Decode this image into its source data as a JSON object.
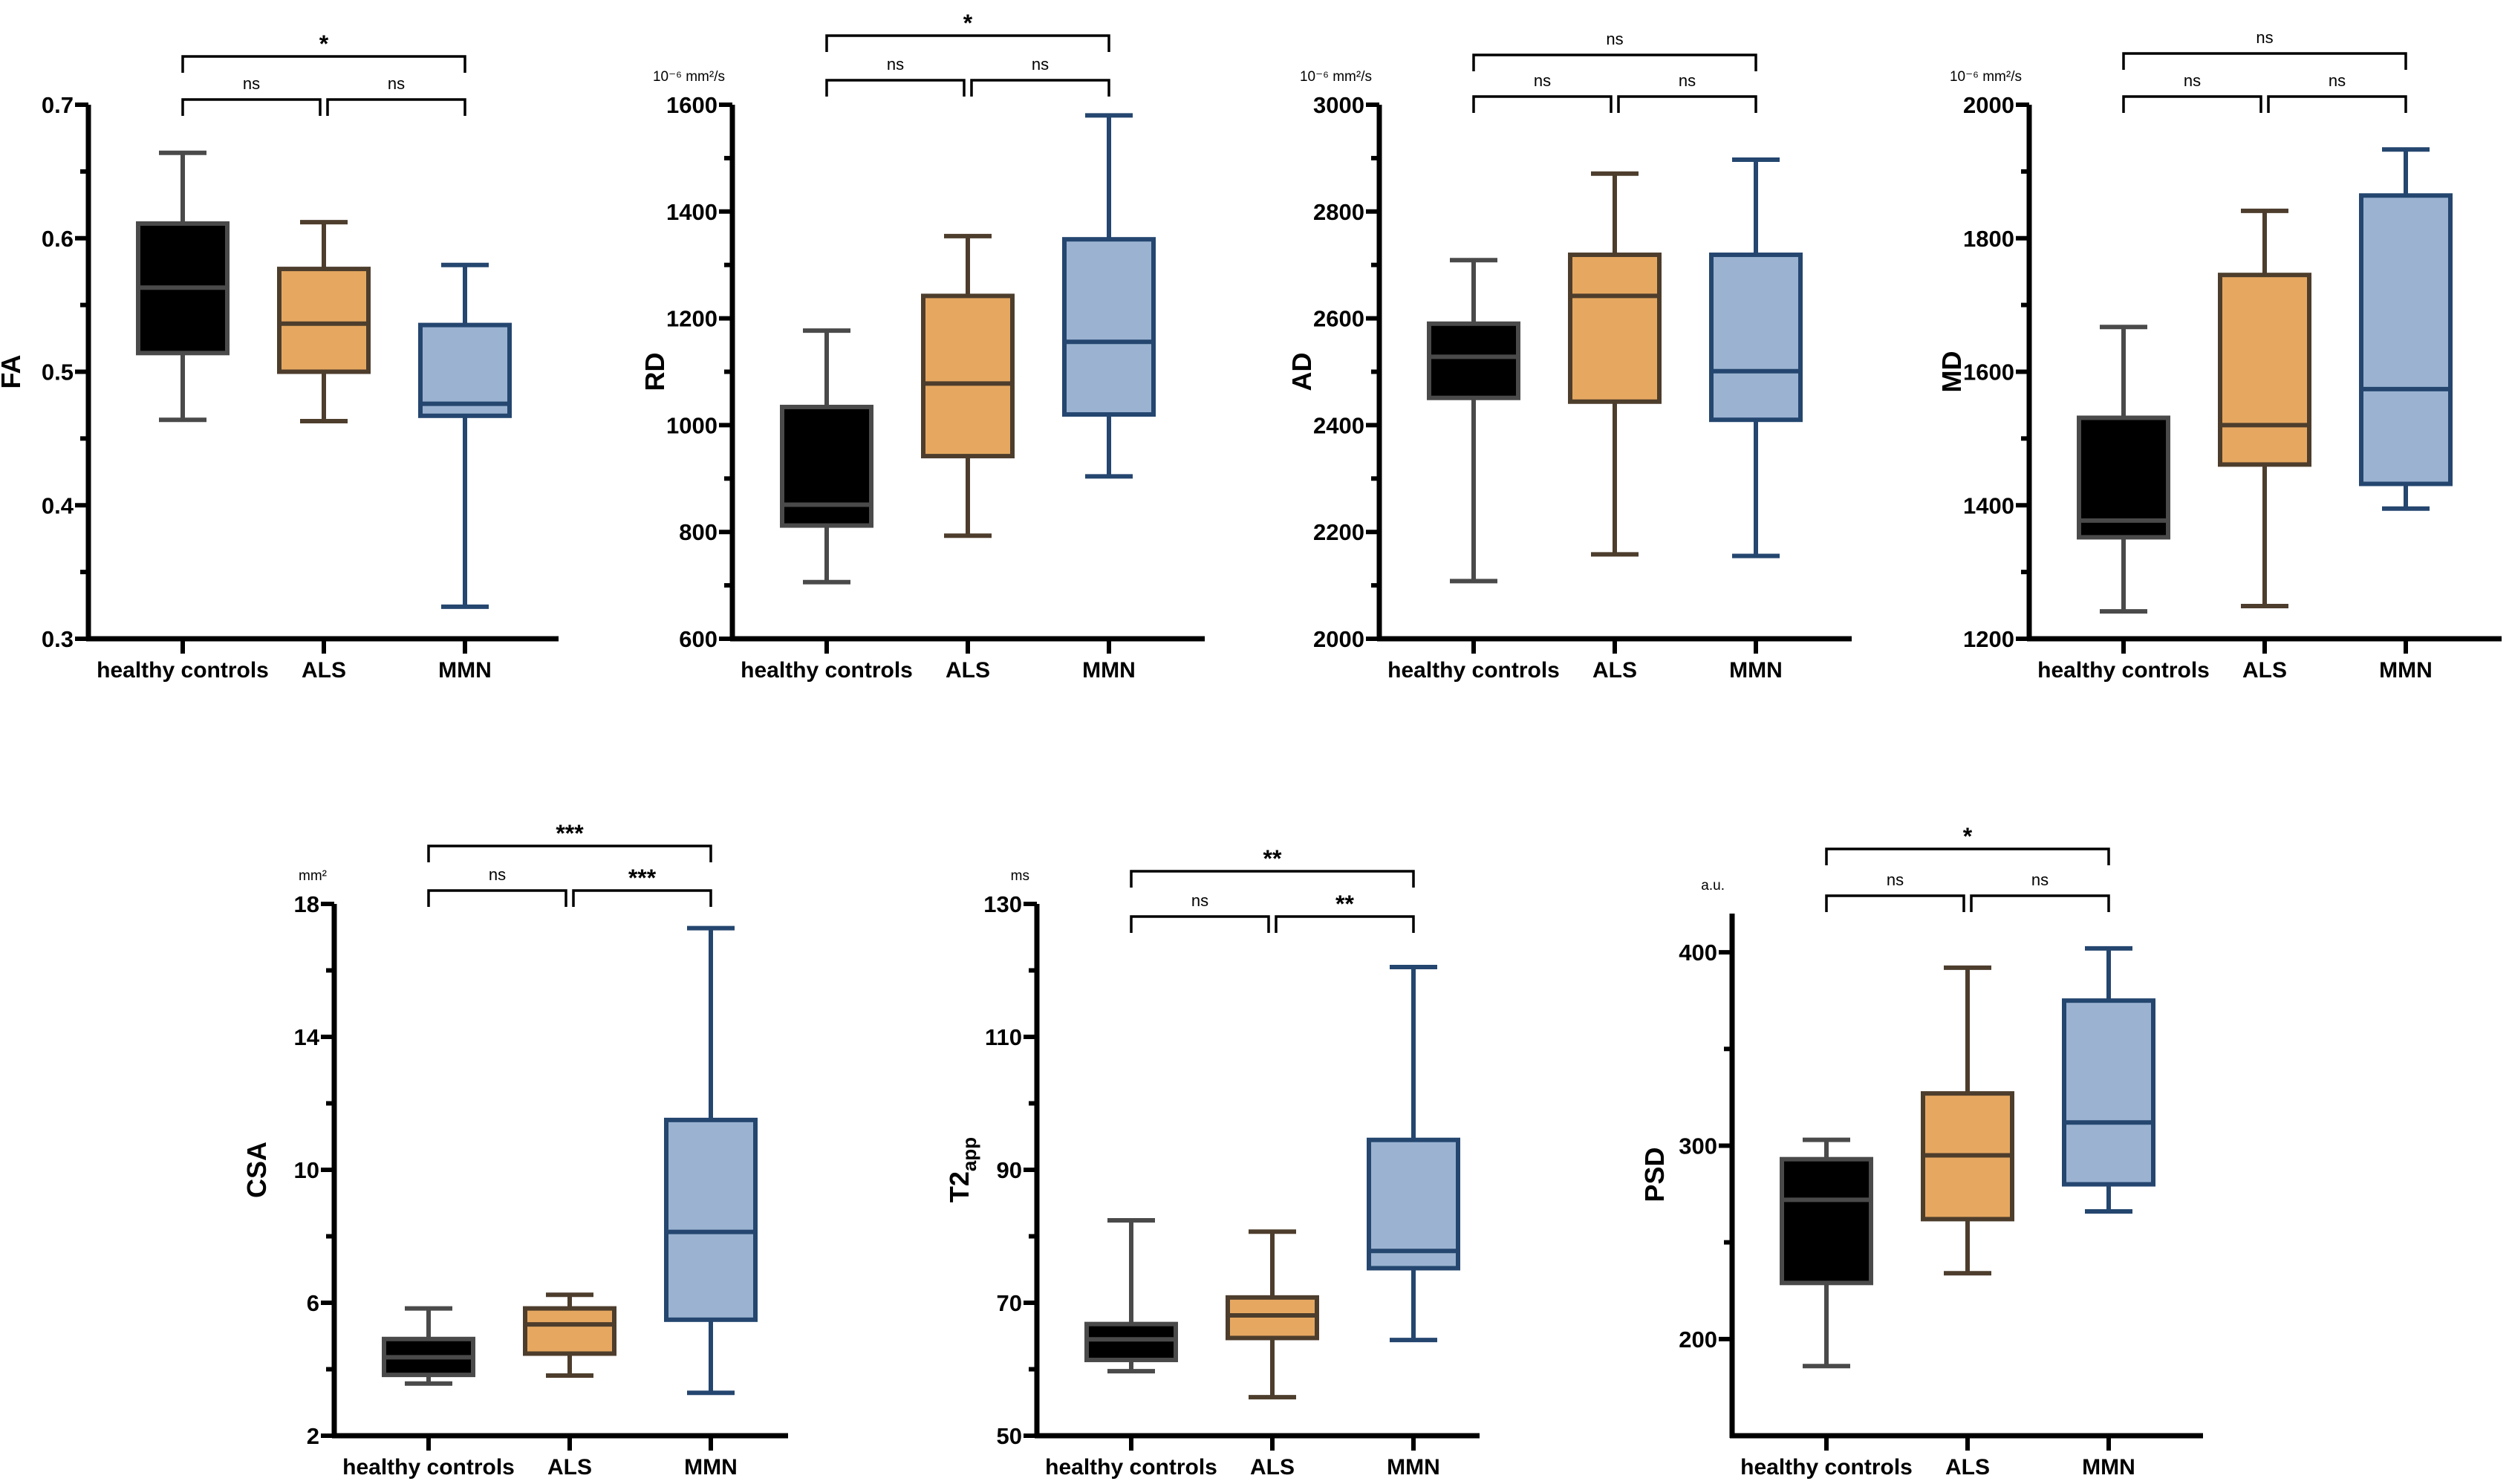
{
  "colors": {
    "healthy controls": {
      "fill": "#000000",
      "stroke": "#4a4a4a"
    },
    "ALS": {
      "fill": "#e6a861",
      "stroke": "#4d3d2c"
    },
    "MMN": {
      "fill": "#9bb3d1",
      "stroke": "#24466f"
    }
  },
  "chart_data": [
    {
      "type": "box",
      "ylabel": "FA",
      "unit": "",
      "ylim": [
        0.3,
        0.7
      ],
      "yticks": [
        0.3,
        0.4,
        0.5,
        0.6,
        0.7
      ],
      "ytick_labels": [
        "0.3",
        "0.4",
        "0.5",
        "0.6",
        "0.7"
      ],
      "yminor": [
        0.35,
        0.45,
        0.55,
        0.65
      ],
      "categories": [
        "healthy controls",
        "ALS",
        "MMN"
      ],
      "boxes": [
        {
          "min": 0.464,
          "q1": 0.514,
          "median": 0.563,
          "q3": 0.611,
          "max": 0.664
        },
        {
          "min": 0.463,
          "q1": 0.5,
          "median": 0.536,
          "q3": 0.577,
          "max": 0.612
        },
        {
          "min": 0.324,
          "q1": 0.467,
          "median": 0.476,
          "q3": 0.535,
          "max": 0.58
        }
      ],
      "comparisons": [
        {
          "groups": [
            "healthy controls",
            "ALS"
          ],
          "label": "ns"
        },
        {
          "groups": [
            "ALS",
            "MMN"
          ],
          "label": "ns"
        },
        {
          "groups": [
            "healthy controls",
            "MMN"
          ],
          "label": "*"
        }
      ]
    },
    {
      "type": "box",
      "ylabel": "RD",
      "unit": "10⁻⁶ mm²/s",
      "ylim": [
        600,
        1600
      ],
      "yticks": [
        600,
        800,
        1000,
        1200,
        1400,
        1600
      ],
      "ytick_labels": [
        "600",
        "800",
        "1000",
        "1200",
        "1400",
        "1600"
      ],
      "yminor": [
        700,
        900,
        1100,
        1300,
        1500
      ],
      "categories": [
        "healthy controls",
        "ALS",
        "MMN"
      ],
      "boxes": [
        {
          "min": 706,
          "q1": 812,
          "median": 851,
          "q3": 1034,
          "max": 1177
        },
        {
          "min": 793,
          "q1": 942,
          "median": 1078,
          "q3": 1242,
          "max": 1354
        },
        {
          "min": 904,
          "q1": 1020,
          "median": 1156,
          "q3": 1348,
          "max": 1580
        }
      ],
      "comparisons": [
        {
          "groups": [
            "healthy controls",
            "ALS"
          ],
          "label": "ns"
        },
        {
          "groups": [
            "ALS",
            "MMN"
          ],
          "label": "ns"
        },
        {
          "groups": [
            "healthy controls",
            "MMN"
          ],
          "label": "*"
        }
      ]
    },
    {
      "type": "box",
      "ylabel": "AD",
      "unit": "10⁻⁶ mm²/s",
      "ylim": [
        2000,
        3000
      ],
      "yticks": [
        2000,
        2200,
        2400,
        2600,
        2800,
        3000
      ],
      "ytick_labels": [
        "2000",
        "2200",
        "2400",
        "2600",
        "2800",
        "3000"
      ],
      "yminor": [
        2100,
        2300,
        2500,
        2700,
        2900
      ],
      "categories": [
        "healthy controls",
        "ALS",
        "MMN"
      ],
      "boxes": [
        {
          "min": 2108,
          "q1": 2451,
          "median": 2528,
          "q3": 2590,
          "max": 2709
        },
        {
          "min": 2158,
          "q1": 2444,
          "median": 2642,
          "q3": 2719,
          "max": 2871
        },
        {
          "min": 2155,
          "q1": 2410,
          "median": 2501,
          "q3": 2719,
          "max": 2897
        }
      ],
      "comparisons": [
        {
          "groups": [
            "healthy controls",
            "ALS"
          ],
          "label": "ns"
        },
        {
          "groups": [
            "ALS",
            "MMN"
          ],
          "label": "ns"
        },
        {
          "groups": [
            "healthy controls",
            "MMN"
          ],
          "label": "ns"
        }
      ]
    },
    {
      "type": "box",
      "ylabel": "MD",
      "unit": "10⁻⁶ mm²/s",
      "ylim": [
        1200,
        2000
      ],
      "yticks": [
        1200,
        1400,
        1600,
        1800,
        2000
      ],
      "ytick_labels": [
        "1200",
        "1400",
        "1600",
        "1800",
        "2000"
      ],
      "yminor": [
        1300,
        1500,
        1700,
        1900
      ],
      "categories": [
        "healthy controls",
        "ALS",
        "MMN"
      ],
      "boxes": [
        {
          "min": 1241,
          "q1": 1352,
          "median": 1377,
          "q3": 1531,
          "max": 1667
        },
        {
          "min": 1249,
          "q1": 1461,
          "median": 1520,
          "q3": 1745,
          "max": 1841
        },
        {
          "min": 1395,
          "q1": 1432,
          "median": 1574,
          "q3": 1864,
          "max": 1933
        }
      ],
      "comparisons": [
        {
          "groups": [
            "healthy controls",
            "ALS"
          ],
          "label": "ns"
        },
        {
          "groups": [
            "ALS",
            "MMN"
          ],
          "label": "ns"
        },
        {
          "groups": [
            "healthy controls",
            "MMN"
          ],
          "label": "ns"
        }
      ]
    },
    {
      "type": "box",
      "ylabel": "CSA",
      "unit": "mm²",
      "ylim": [
        2,
        18
      ],
      "yticks": [
        2,
        6,
        10,
        14,
        18
      ],
      "ytick_labels": [
        "2",
        "6",
        "10",
        "14",
        "18"
      ],
      "yminor": [
        4,
        8,
        12,
        16
      ],
      "categories": [
        "healthy controls",
        "ALS",
        "MMN"
      ],
      "boxes": [
        {
          "min": 3.57,
          "q1": 3.83,
          "median": 4.36,
          "q3": 4.91,
          "max": 5.83
        },
        {
          "min": 3.81,
          "q1": 4.47,
          "median": 5.35,
          "q3": 5.83,
          "max": 6.24
        },
        {
          "min": 3.29,
          "q1": 5.49,
          "median": 8.13,
          "q3": 11.5,
          "max": 17.27
        }
      ],
      "comparisons": [
        {
          "groups": [
            "healthy controls",
            "ALS"
          ],
          "label": "ns"
        },
        {
          "groups": [
            "ALS",
            "MMN"
          ],
          "label": "***"
        },
        {
          "groups": [
            "healthy controls",
            "MMN"
          ],
          "label": "***"
        }
      ]
    },
    {
      "type": "box",
      "ylabel": "T2",
      "ylabel_sub": "app",
      "unit": "ms",
      "ylim": [
        50,
        130
      ],
      "yticks": [
        50,
        70,
        90,
        110,
        130
      ],
      "ytick_labels": [
        "50",
        "70",
        "90",
        "110",
        "130"
      ],
      "yminor": [
        60,
        80,
        100,
        120
      ],
      "categories": [
        "healthy controls",
        "ALS",
        "MMN"
      ],
      "boxes": [
        {
          "min": 59.7,
          "q1": 61.4,
          "median": 64.5,
          "q3": 66.8,
          "max": 82.4
        },
        {
          "min": 55.8,
          "q1": 64.7,
          "median": 68.1,
          "q3": 70.8,
          "max": 80.7
        },
        {
          "min": 64.4,
          "q1": 75.2,
          "median": 77.8,
          "q3": 94.5,
          "max": 120.5
        }
      ],
      "comparisons": [
        {
          "groups": [
            "healthy controls",
            "ALS"
          ],
          "label": "ns"
        },
        {
          "groups": [
            "ALS",
            "MMN"
          ],
          "label": "**"
        },
        {
          "groups": [
            "healthy controls",
            "MMN"
          ],
          "label": "**"
        }
      ]
    },
    {
      "type": "box",
      "ylabel": "PSD",
      "unit": "a.u.",
      "ylim": [
        150,
        420
      ],
      "yticks": [
        200,
        300,
        400
      ],
      "ytick_labels": [
        "200",
        "300",
        "400"
      ],
      "yminor": [
        250,
        350
      ],
      "categories": [
        "healthy controls",
        "ALS",
        "MMN"
      ],
      "boxes": [
        {
          "min": 186,
          "q1": 229,
          "median": 272,
          "q3": 293,
          "max": 303
        },
        {
          "min": 234,
          "q1": 262,
          "median": 295,
          "q3": 327,
          "max": 392
        },
        {
          "min": 266,
          "q1": 280,
          "median": 312,
          "q3": 375,
          "max": 402
        }
      ],
      "comparisons": [
        {
          "groups": [
            "healthy controls",
            "ALS"
          ],
          "label": "ns"
        },
        {
          "groups": [
            "ALS",
            "MMN"
          ],
          "label": "ns"
        },
        {
          "groups": [
            "healthy controls",
            "MMN"
          ],
          "label": "*"
        }
      ]
    }
  ]
}
